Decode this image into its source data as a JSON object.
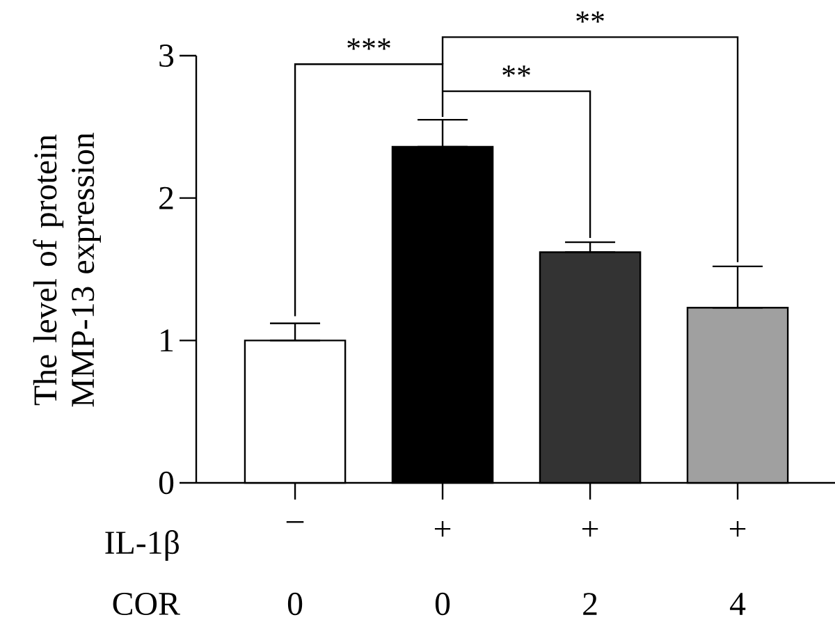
{
  "chart_data": {
    "type": "bar",
    "ylabel": "The level of protein MMP-13 expression",
    "categories": [
      "–",
      "+",
      "+",
      "+"
    ],
    "values": [
      1.0,
      2.36,
      1.62,
      1.23
    ],
    "colors": [
      "#ffffff",
      "#000000",
      "#333333",
      "#a0a0a0"
    ],
    "errors": [
      [
        1.0,
        1.12
      ],
      [
        2.36,
        2.55
      ],
      [
        1.62,
        1.69
      ],
      [
        1.23,
        1.52
      ]
    ],
    "ylim": [
      0,
      3
    ],
    "yticks": [
      0,
      1,
      2,
      3
    ],
    "annotations": [
      "***",
      "**",
      "**",
      "IL-1β",
      "COR",
      "0",
      "0",
      "2",
      "4"
    ]
  }
}
